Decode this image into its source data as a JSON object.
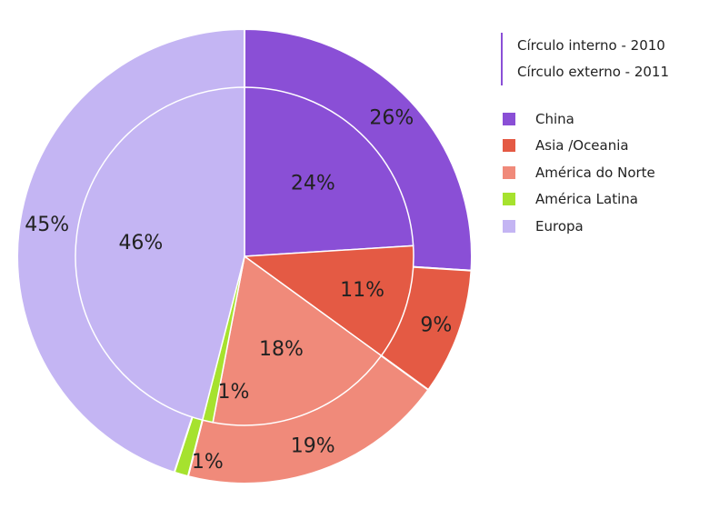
{
  "chart_data": {
    "type": "pie",
    "variant": "nested-donut",
    "ring_labels": {
      "inner": "Círculo interno - 2010",
      "outer": "Círculo externo - 2011"
    },
    "categories": [
      "China",
      "Asia /Oceania",
      "América do Norte",
      "América Latina",
      "Europa"
    ],
    "colors": [
      "#8a4fd6",
      "#e45a44",
      "#f08a7a",
      "#a6e22e",
      "#c4b5f3"
    ],
    "series": [
      {
        "name": "Círculo interno - 2010",
        "ring": "inner",
        "values": [
          24,
          11,
          18,
          1,
          46
        ],
        "labels": [
          "24%",
          "11%",
          "18%",
          "1%",
          "46%"
        ]
      },
      {
        "name": "Círculo externo - 2011",
        "ring": "outer",
        "values": [
          26,
          9,
          19,
          1,
          45
        ],
        "labels": [
          "26%",
          "9%",
          "19%",
          "1%",
          "45%"
        ]
      }
    ],
    "legend_position": "right",
    "title": ""
  }
}
